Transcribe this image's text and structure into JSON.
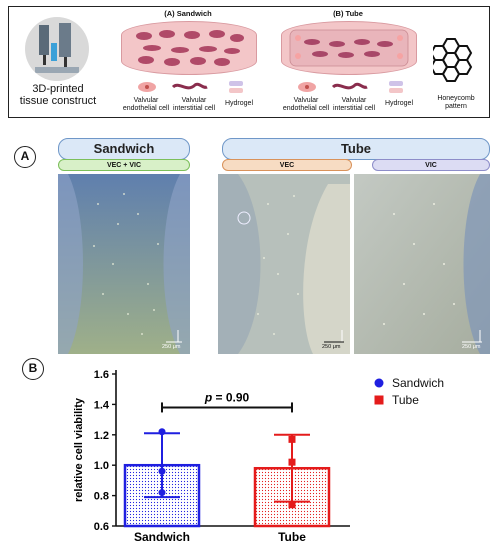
{
  "schematic": {
    "printer_label": "3D-printed\ntissue construct",
    "panel_a_title": "(A) Sandwich",
    "panel_b_title": "(B) Tube",
    "legend_vec": "Valvular\nendothelial cell",
    "legend_vic": "Valvular\ninterstitial cell",
    "legend_hydrogel": "Hydrogel",
    "legend_honeycomb": "Honeycomb\npattern"
  },
  "panel_a": {
    "label": "A",
    "sandwich_header": "Sandwich",
    "tube_header": "Tube",
    "sub_sandwich": "VEC + VIC",
    "sub_tube_vec": "VEC",
    "sub_tube_vic": "VIC",
    "scale": "250 μm"
  },
  "panel_b": {
    "label": "B"
  },
  "colors": {
    "sandwich": "#1f1fe0",
    "tube": "#e41b1b",
    "pill_green": "#d8f0c8",
    "pill_orange": "#f7dcc3",
    "pill_purple": "#dcdcf3"
  },
  "chart_data": {
    "type": "bar",
    "categories": [
      "Sandwich",
      "Tube"
    ],
    "values": [
      1.0,
      0.98
    ],
    "error_upper": [
      1.21,
      1.2
    ],
    "error_lower": [
      0.79,
      0.76
    ],
    "points": [
      [
        1.22,
        0.96,
        0.82
      ],
      [
        1.17,
        1.02,
        0.74
      ]
    ],
    "ylabel": "relative cell viability",
    "ylim": [
      0.6,
      1.6
    ],
    "yticks": [
      0.6,
      0.8,
      1.0,
      1.2,
      1.4,
      1.6
    ],
    "ytick_labels": [
      "0.6",
      "0.8",
      "1.0",
      "1.2",
      "1.4",
      "1.6"
    ],
    "annotation_p": "p",
    "annotation_value": " = 0.90",
    "legend": [
      {
        "name": "Sandwich",
        "marker": "circle"
      },
      {
        "name": "Tube",
        "marker": "square"
      }
    ],
    "legend_position": "right"
  }
}
